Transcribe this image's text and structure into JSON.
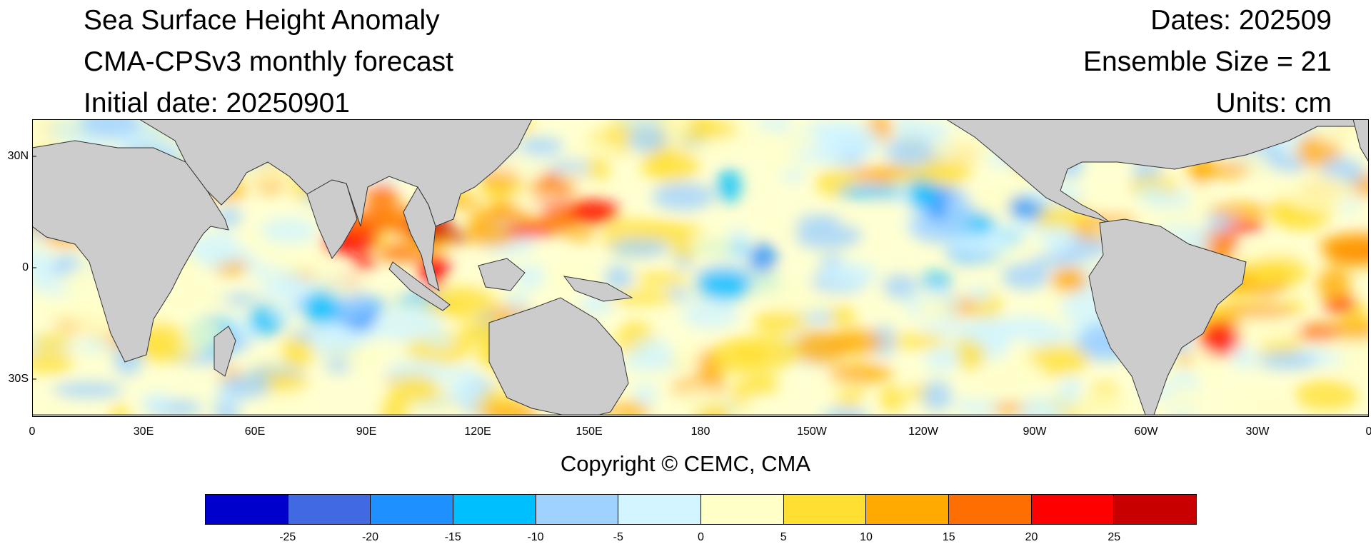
{
  "header": {
    "title": "Sea Surface Height Anomaly",
    "model": "CMA-CPSv3 monthly forecast",
    "initial": "Initial date: 20250901",
    "dates": "Dates: 202509",
    "ensemble": "Ensemble Size = 21",
    "units": "Units: cm"
  },
  "map": {
    "lat_labels": [
      "30N",
      "0",
      "30S"
    ],
    "lon_labels": [
      "0",
      "30E",
      "60E",
      "90E",
      "120E",
      "150E",
      "180",
      "150W",
      "120W",
      "90W",
      "60W",
      "30W",
      "0"
    ]
  },
  "copyright": "Copyright © CEMC, CMA",
  "colorbar": {
    "colors": [
      "#0000cd",
      "#4169e1",
      "#1e90ff",
      "#00bfff",
      "#a0d2ff",
      "#d2f5ff",
      "#ffffc8",
      "#ffe032",
      "#ffaa00",
      "#ff6e00",
      "#ff0000",
      "#c80000"
    ],
    "labels": [
      "-25",
      "-20",
      "-15",
      "-10",
      "-5",
      "0",
      "5",
      "10",
      "15",
      "20",
      "25"
    ]
  }
}
